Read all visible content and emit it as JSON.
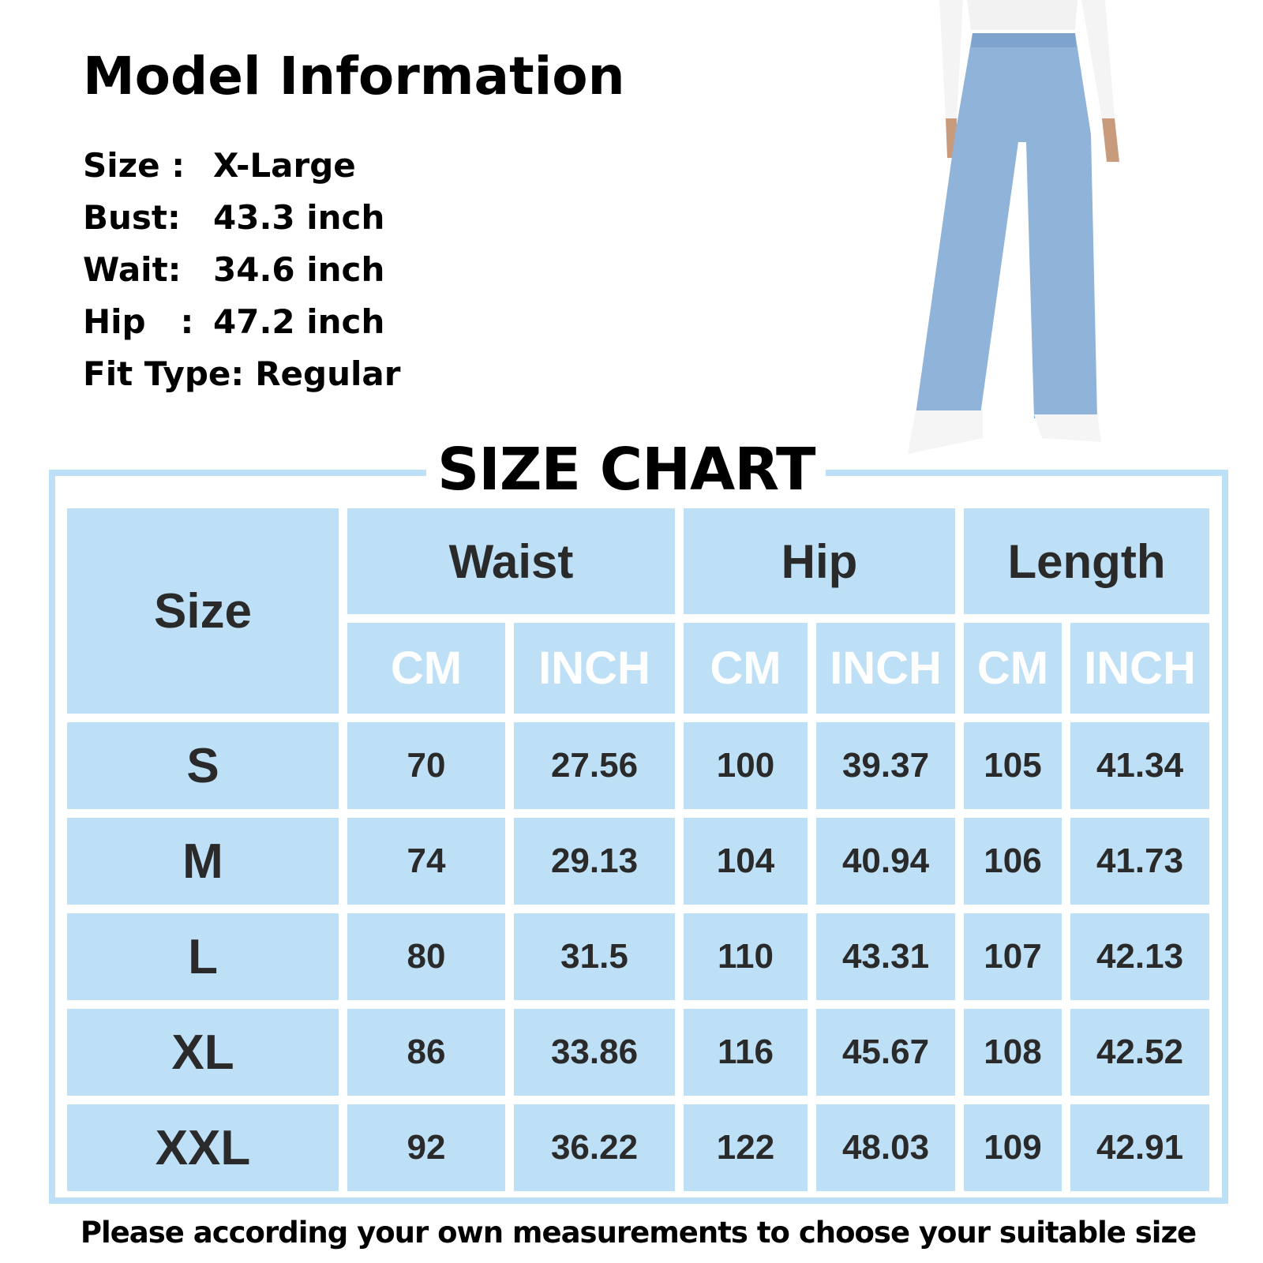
{
  "model_info": {
    "title": "Model Information",
    "rows": [
      {
        "label": "Size :",
        "value": "X-Large"
      },
      {
        "label": "Bust:",
        "value": "43.3 inch"
      },
      {
        "label": "Wait:",
        "value": "34.6 inch"
      },
      {
        "label": "Hip   :",
        "value": "47.2 inch"
      },
      {
        "label": "Fit Type:",
        "value": "Regular"
      }
    ]
  },
  "product_image": {
    "subject": "light-wash wide-leg jeans",
    "colors": {
      "denim": "#8fb3d9",
      "top": "#f4f4f4"
    }
  },
  "size_chart": {
    "title": "SIZE CHART",
    "accent_color": "#bee0f7",
    "header": {
      "size": "Size",
      "groups": [
        "Waist",
        "Hip",
        "Length"
      ],
      "units": [
        "CM",
        "INCH",
        "CM",
        "INCH",
        "CM",
        "INCH"
      ]
    },
    "rows": [
      {
        "size": "S",
        "values": [
          "70",
          "27.56",
          "100",
          "39.37",
          "105",
          "41.34"
        ]
      },
      {
        "size": "M",
        "values": [
          "74",
          "29.13",
          "104",
          "40.94",
          "106",
          "41.73"
        ]
      },
      {
        "size": "L",
        "values": [
          "80",
          "31.5",
          "110",
          "43.31",
          "107",
          "42.13"
        ]
      },
      {
        "size": "XL",
        "values": [
          "86",
          "33.86",
          "116",
          "45.67",
          "108",
          "42.52"
        ]
      },
      {
        "size": "XXL",
        "values": [
          "92",
          "36.22",
          "122",
          "48.03",
          "109",
          "42.91"
        ]
      }
    ]
  },
  "footer": "Please according your own measurements to choose your suitable size"
}
